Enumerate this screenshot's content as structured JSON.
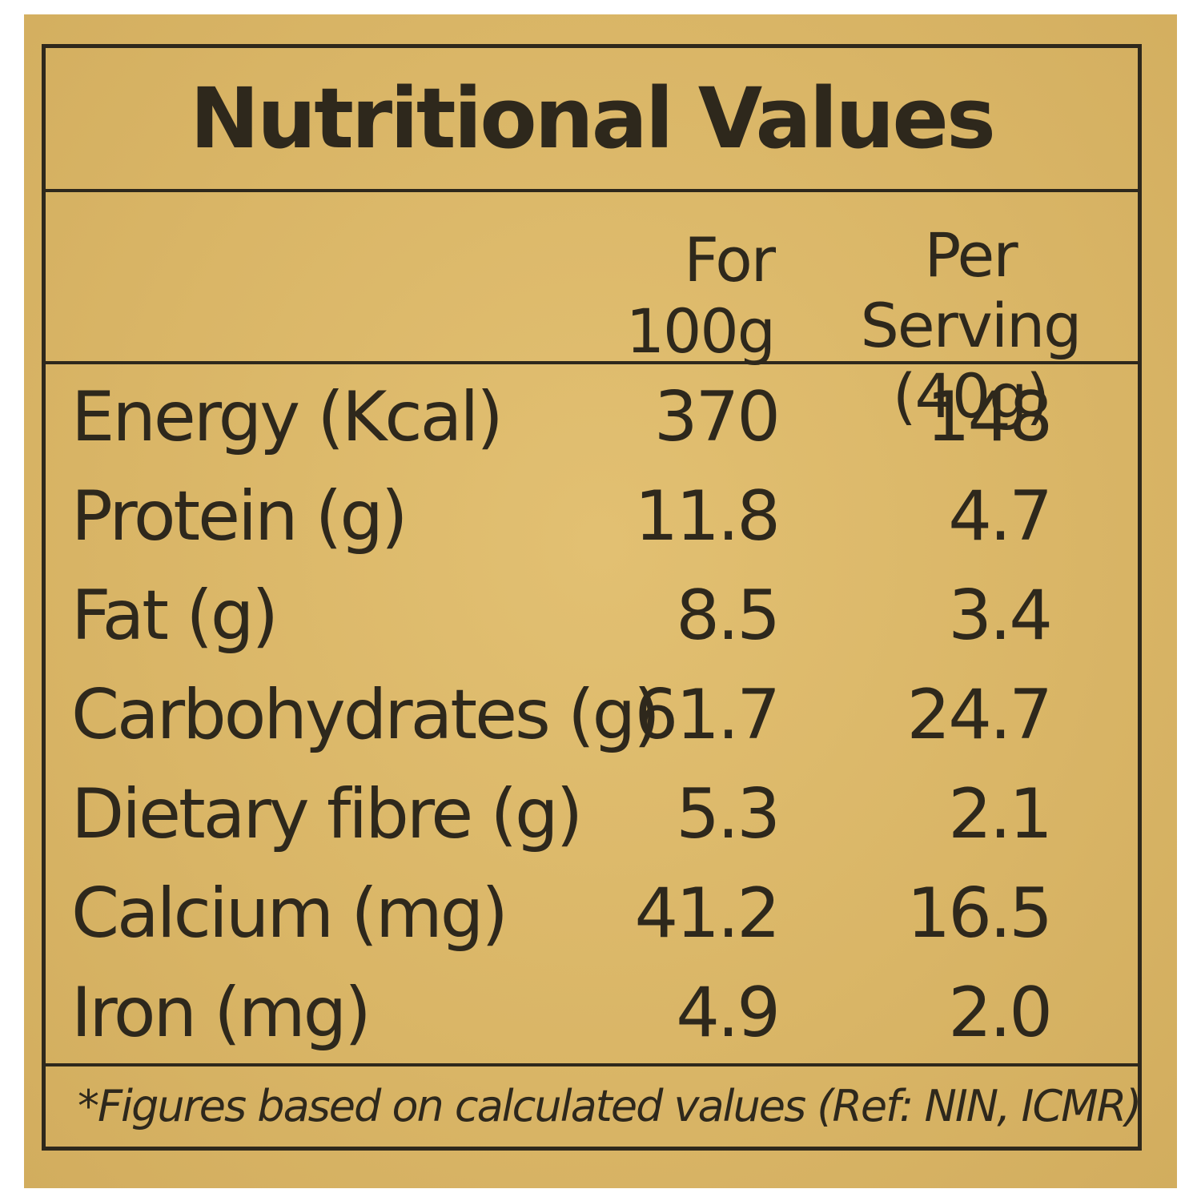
{
  "title": "Nutritional Values",
  "columns": {
    "per_100g": "For 100g",
    "per_serving_line1": "Per Serving",
    "per_serving_line2": "(40g)"
  },
  "rows": [
    {
      "name": "Energy (Kcal)",
      "per_100g": "370",
      "per_serving": "148"
    },
    {
      "name": "Protein (g)",
      "per_100g": "11.8",
      "per_serving": "4.7"
    },
    {
      "name": "Fat (g)",
      "per_100g": "8.5",
      "per_serving": "3.4"
    },
    {
      "name": "Carbohydrates (g)",
      "per_100g": "61.7",
      "per_serving": "24.7"
    },
    {
      "name": "Dietary fibre (g)",
      "per_100g": "5.3",
      "per_serving": "2.1"
    },
    {
      "name": "Calcium (mg)",
      "per_100g": "41.2",
      "per_serving": "16.5"
    },
    {
      "name": "Iron (mg)",
      "per_100g": "4.9",
      "per_serving": "2.0"
    }
  ],
  "footnote": "*Figures based on calculated values (Ref: NIN, ICMR)",
  "colors": {
    "label_background": "#dcb86a",
    "ink": "#2e281c"
  }
}
